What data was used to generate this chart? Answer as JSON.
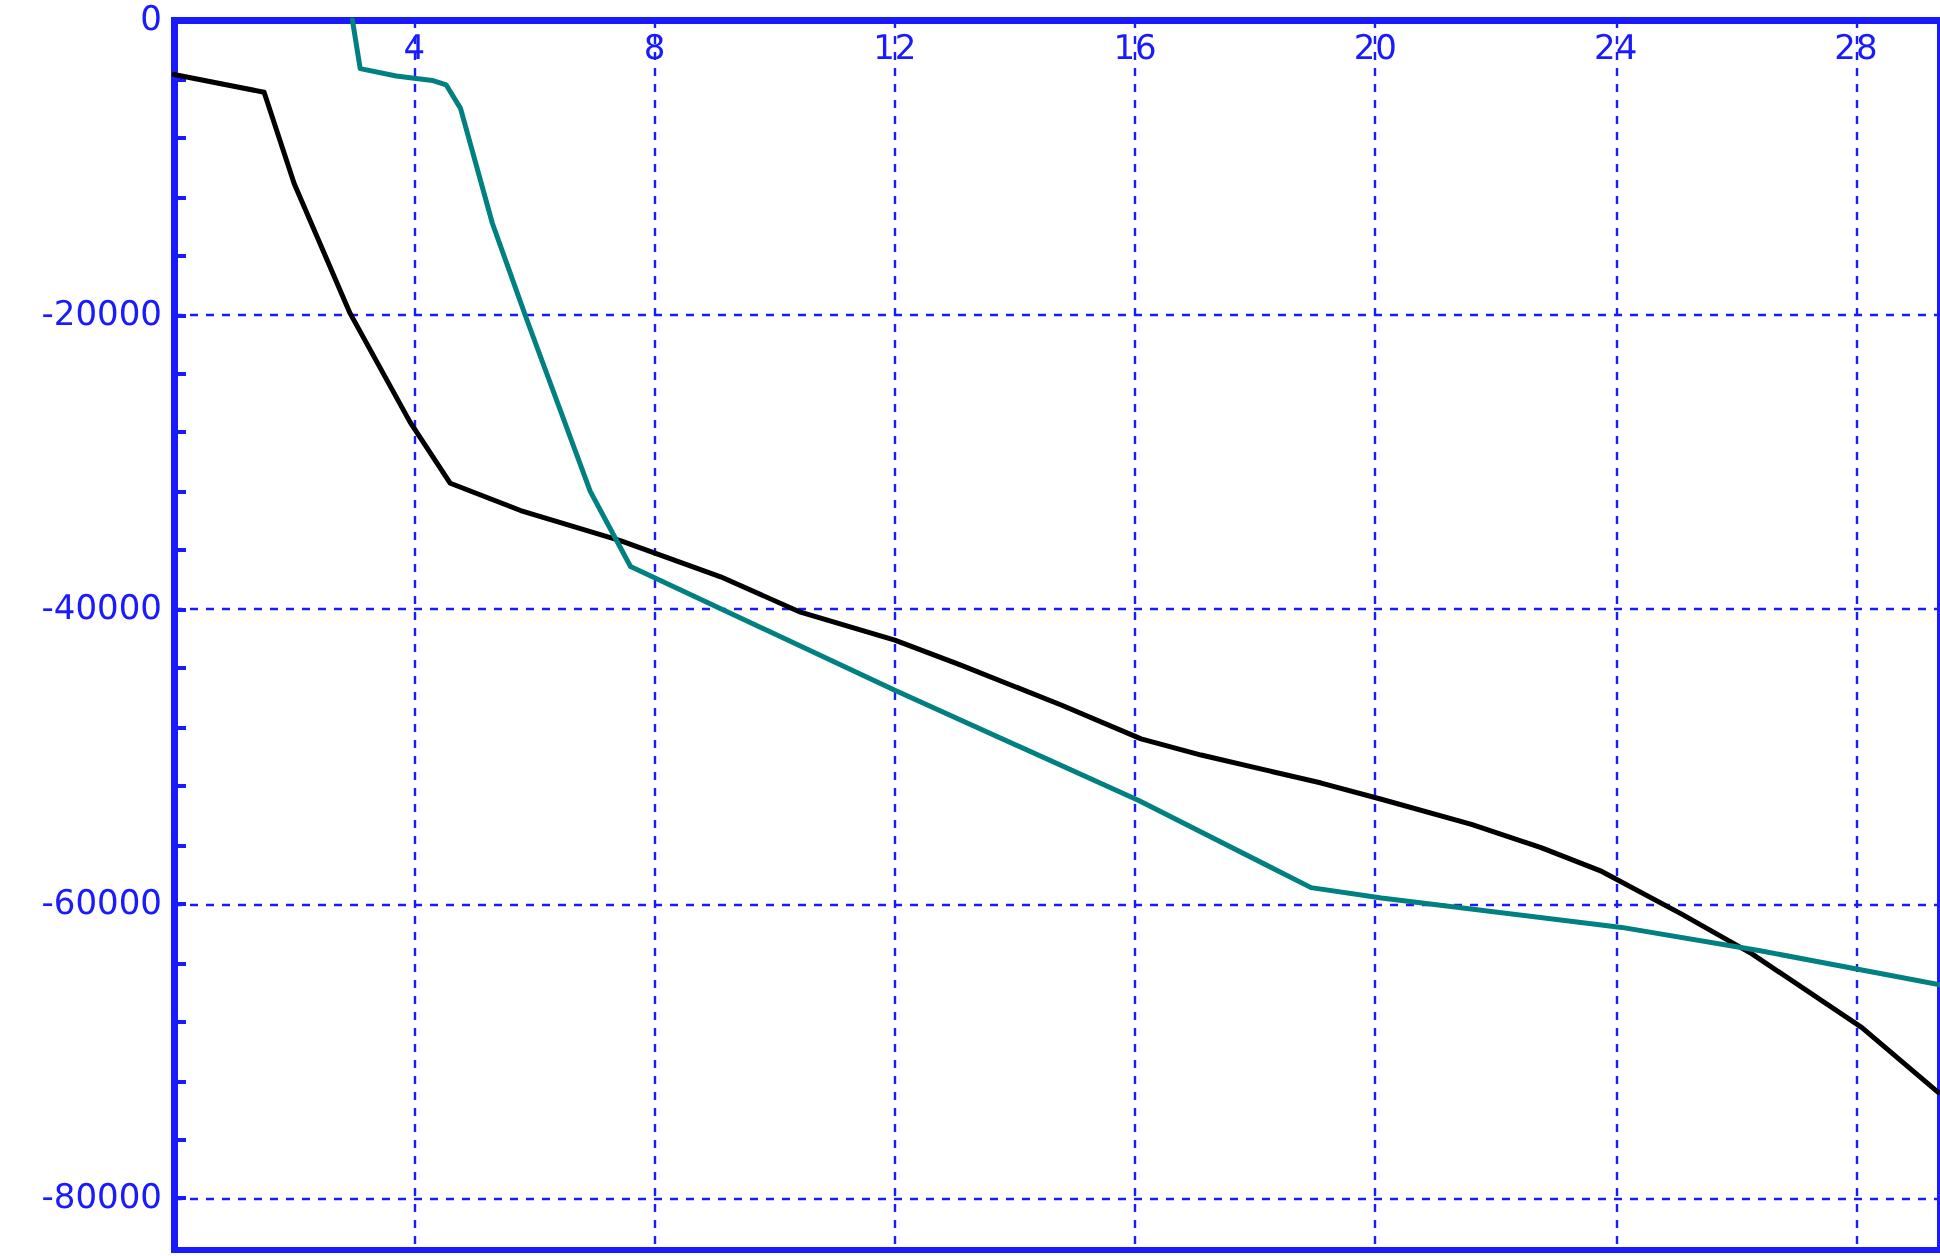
{
  "chart_data": {
    "type": "line",
    "xlim": [
      0,
      29.4
    ],
    "xticks": [
      4,
      8,
      12,
      16,
      20,
      24,
      28
    ],
    "ylim": [
      -83500,
      0
    ],
    "yticks": [
      0,
      {
        "value": -4000,
        "label": null
      },
      {
        "value": -8000,
        "label": null
      },
      {
        "value": -12000,
        "label": null
      },
      {
        "value": -16000,
        "label": null
      },
      -20000,
      {
        "value": -24000,
        "label": null
      },
      {
        "value": -28000,
        "label": null
      },
      {
        "value": -32000,
        "label": null
      },
      {
        "value": -36000,
        "label": null
      },
      -40000,
      {
        "value": -44000,
        "label": null
      },
      {
        "value": -48000,
        "label": null
      },
      {
        "value": -52000,
        "label": null
      },
      {
        "value": -56000,
        "label": null
      },
      -60000,
      {
        "value": -64000,
        "label": null
      },
      {
        "value": -68000,
        "label": null
      },
      {
        "value": -72000,
        "label": null
      },
      {
        "value": -76000,
        "label": null
      },
      -80000
    ],
    "grid": true,
    "marker": "none",
    "line_style": "solid",
    "series": [
      {
        "color": "#000000",
        "x": [
          0,
          1.5,
          2.0,
          2.93,
          3.93,
          4.6,
          5.77,
          7.43,
          9.1,
          10.43,
          12,
          13.1,
          14.77,
          16.1,
          17.1,
          19.1,
          20.1,
          21.6,
          22.77,
          23.77,
          25.1,
          26.27,
          28.1,
          29.37
        ],
        "values": [
          -3700,
          -4900,
          -11100,
          -19900,
          -27300,
          -31450,
          -33300,
          -35350,
          -37800,
          -40200,
          -42100,
          -43800,
          -46500,
          -48800,
          -49900,
          -51800,
          -52900,
          -54600,
          -56200,
          -57800,
          -60700,
          -63400,
          -68400,
          -72800
        ]
      },
      {
        "color": "#008080",
        "x": [
          2.97,
          3.1,
          3.7,
          4.3,
          4.53,
          4.77,
          5.3,
          5.87,
          6.93,
          7.6,
          12,
          16.07,
          18.93,
          20.1,
          24.1,
          26.43,
          29.4
        ],
        "values": [
          0,
          -3300,
          -3800,
          -4100,
          -4400,
          -6000,
          -13800,
          -20300,
          -32000,
          -37100,
          -45500,
          -53000,
          -58900,
          -59600,
          -61600,
          -63200,
          -65500
        ]
      }
    ]
  }
}
